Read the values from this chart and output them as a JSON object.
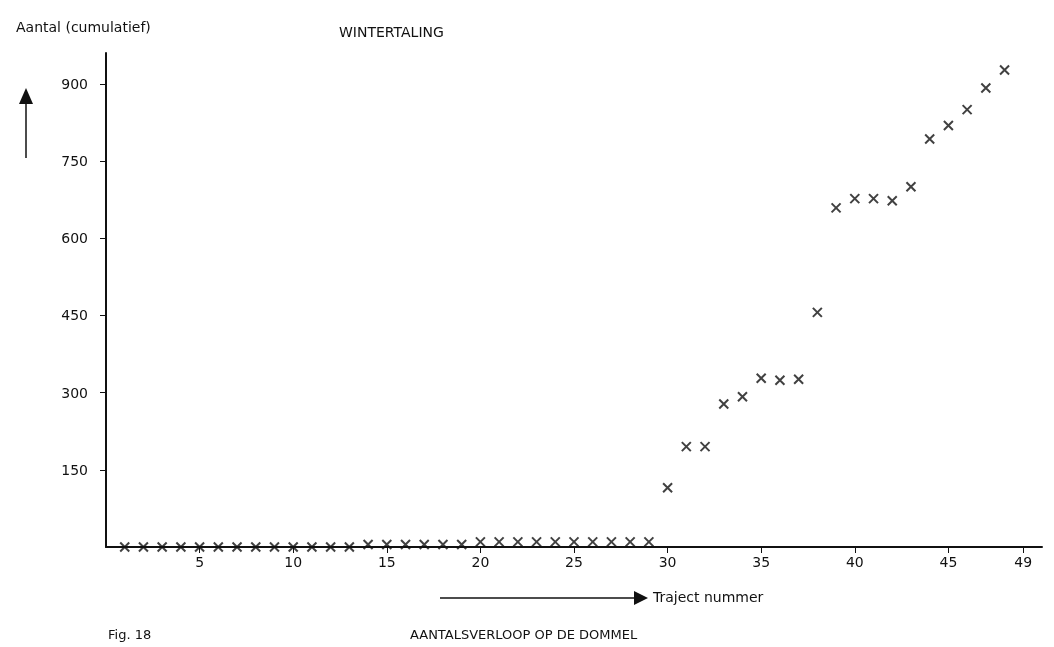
{
  "chart_data": {
    "type": "scatter",
    "title": "WINTERTALING",
    "ylabel": "Aantal (cumulatief)",
    "xlabel": "Traject nummer",
    "annotations": [
      "Fig. 18",
      "AANTALSVERLOOP OP DE DOMMEL"
    ],
    "x": [
      1,
      2,
      3,
      4,
      5,
      6,
      7,
      8,
      9,
      10,
      11,
      12,
      13,
      14,
      15,
      16,
      17,
      18,
      19,
      20,
      21,
      22,
      23,
      24,
      25,
      26,
      27,
      28,
      29,
      30,
      31,
      32,
      33,
      34,
      35,
      36,
      37,
      38,
      39,
      40,
      41,
      42,
      43,
      44,
      45,
      46,
      47,
      48
    ],
    "values": [
      0,
      0,
      0,
      0,
      0,
      0,
      0,
      0,
      0,
      0,
      0,
      0,
      0,
      5,
      5,
      5,
      5,
      5,
      5,
      10,
      10,
      10,
      10,
      10,
      10,
      10,
      10,
      10,
      10,
      115,
      195,
      195,
      278,
      292,
      328,
      324,
      326,
      456,
      659,
      677,
      677,
      673,
      700,
      793,
      819,
      850,
      892,
      927
    ],
    "color": "#111111",
    "marker": "cross",
    "grid": false,
    "xlim": [
      0,
      50
    ],
    "xticks": [
      5,
      10,
      15,
      20,
      25,
      30,
      35,
      40,
      45,
      49
    ],
    "ylim": [
      0,
      960
    ],
    "yticks": [
      150,
      300,
      450,
      600,
      750,
      900
    ]
  }
}
